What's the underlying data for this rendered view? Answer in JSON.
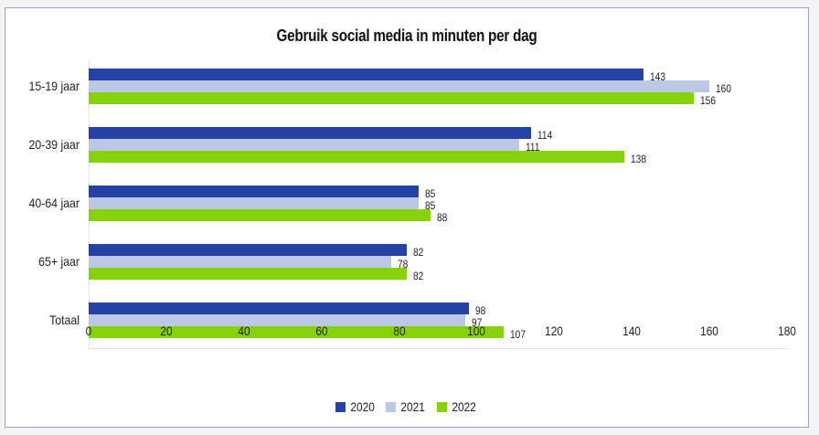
{
  "chart_data": {
    "type": "bar",
    "orientation": "horizontal",
    "title": "Gebruik social media in minuten per dag",
    "categories": [
      "15-19 jaar",
      "20-39 jaar",
      "40-64 jaar",
      "65+ jaar",
      "Totaal"
    ],
    "series": [
      {
        "name": "2020",
        "color": "#2541a6",
        "values": [
          143,
          114,
          85,
          82,
          98
        ]
      },
      {
        "name": "2021",
        "color": "#bac8e6",
        "values": [
          160,
          111,
          85,
          78,
          97
        ]
      },
      {
        "name": "2022",
        "color": "#85d20b",
        "values": [
          156,
          138,
          88,
          82,
          107
        ]
      }
    ],
    "xlabel": "",
    "ylabel": "",
    "xlim": [
      0,
      180
    ],
    "xticks": [
      "0",
      "20",
      "40",
      "60",
      "80",
      "100",
      "120",
      "140",
      "160",
      "180"
    ],
    "grid": false,
    "data_labels": true,
    "legend_position": "bottom"
  }
}
